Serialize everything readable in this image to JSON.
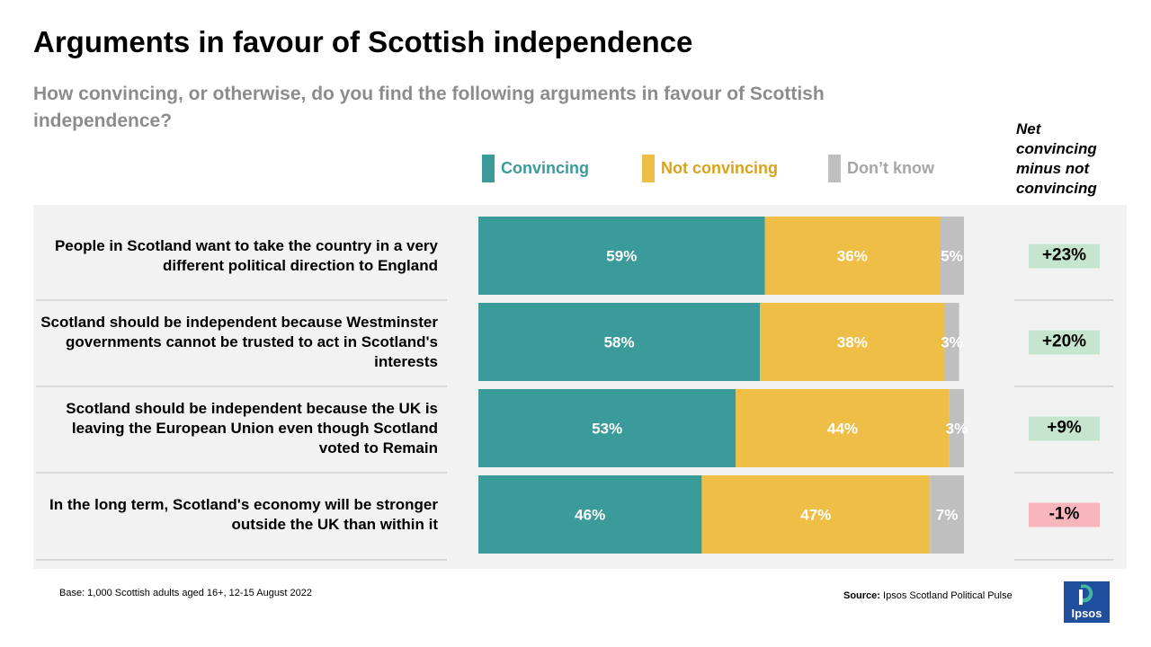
{
  "title": "Arguments in favour of Scottish independence",
  "subtitle": "How convincing, or otherwise, do you find the following arguments in favour of Scottish independence?",
  "legend": [
    {
      "label": "Convincing",
      "color": "#3b9a9a"
    },
    {
      "label": "Not convincing",
      "color": "#efbe47"
    },
    {
      "label": "Don’t know",
      "color": "#bfbfbf"
    }
  ],
  "net_header": "Net convincing minus not convincing",
  "colors": {
    "positive_badge": "#c5e5cf",
    "negative_badge": "#f7b6bc",
    "panel": "#f2f2f2"
  },
  "chart_data": {
    "type": "bar",
    "orientation": "horizontal",
    "stacked": true,
    "categories": [
      "People in Scotland want to take the country in a very different political direction to England",
      "Scotland should be independent because Westminster governments cannot be trusted to act in Scotland's interests",
      "Scotland should be independent because the UK is leaving the European Union even though Scotland voted to Remain",
      "In the long term, Scotland's economy will be stronger outside the UK than within it"
    ],
    "series": [
      {
        "name": "Convincing",
        "values": [
          59,
          58,
          53,
          46
        ]
      },
      {
        "name": "Not convincing",
        "values": [
          36,
          38,
          44,
          47
        ]
      },
      {
        "name": "Don’t know",
        "values": [
          5,
          3,
          3,
          7
        ]
      }
    ],
    "data_labels": [
      [
        "59%",
        "58%",
        "53%",
        "46%"
      ],
      [
        "36%",
        "38%",
        "44%",
        "47%"
      ],
      [
        "5%",
        "3%",
        "3%",
        "7%"
      ]
    ],
    "net": [
      {
        "label": "+23%",
        "value": 23
      },
      {
        "label": "+20%",
        "value": 20
      },
      {
        "label": "+9%",
        "value": 9
      },
      {
        "label": "-1%",
        "value": -1
      }
    ],
    "xlim": [
      0,
      100
    ],
    "legend_position": "top"
  },
  "footnote": "Base: 1,000 Scottish adults aged 16+, 12-15 August 2022",
  "source_label": "Source:",
  "source_text": "Ipsos Scotland Political Pulse",
  "logo_text": "Ipsos"
}
